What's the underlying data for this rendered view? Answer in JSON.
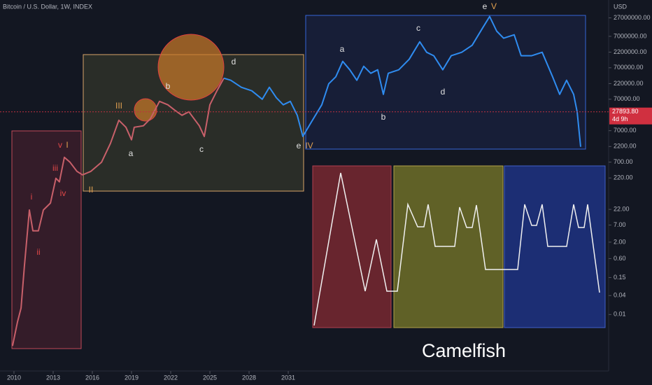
{
  "chart_data": {
    "type": "line",
    "title": "Bitcoin / U.S. Dollar, 1W, INDEX",
    "y_axis_label": "USD",
    "log_scale": true,
    "xlim": [
      2008.93,
      2055.53
    ],
    "xticks": [
      2010,
      2013,
      2016,
      2019,
      2022,
      2025,
      2028,
      2031
    ],
    "ylim": [
      0.00016,
      100000000
    ],
    "yticks": [
      {
        "value": 27000000,
        "label": "27000000.00"
      },
      {
        "value": 7000000,
        "label": "7000000.00"
      },
      {
        "value": 2200000,
        "label": "2200000.00"
      },
      {
        "value": 700000,
        "label": "700000.00"
      },
      {
        "value": 220000,
        "label": "220000.00"
      },
      {
        "value": 70000,
        "label": "70000.00"
      },
      {
        "value": 7000,
        "label": "7000.00"
      },
      {
        "value": 2200,
        "label": "2200.00"
      },
      {
        "value": 700,
        "label": "700.00"
      },
      {
        "value": 220,
        "label": "220.00"
      },
      {
        "value": 22,
        "label": "22.00"
      },
      {
        "value": 7,
        "label": "7.00"
      },
      {
        "value": 2,
        "label": "2.00"
      },
      {
        "value": 0.6,
        "label": "0.60"
      },
      {
        "value": 0.15,
        "label": "0.15"
      },
      {
        "value": 0.04,
        "label": "0.04"
      },
      {
        "value": 0.01,
        "label": "0.01"
      }
    ],
    "last_price": {
      "value": 27893.8,
      "label": "27893.80"
    },
    "countdown": "4d 9h",
    "series": [
      {
        "color": "#c8606a",
        "x": [
          2009.89,
          2010.27,
          2010.54,
          2010.8,
          2011.18,
          2011.45,
          2011.87,
          2012.25,
          2012.79,
          2013.21,
          2013.48,
          2013.86,
          2014.29,
          2014.82,
          2015.25,
          2015.89,
          2016.7,
          2017.39,
          2018.03,
          2018.57,
          2019.0,
          2019.21,
          2019.91,
          2020.44,
          2021.14,
          2021.78,
          2022.32,
          2022.86,
          2023.39,
          2024.19,
          2024.57,
          2025.0,
          2025.54,
          2026.07
        ],
        "values": [
          0.001,
          0.0058,
          0.016,
          0.35,
          21,
          4.6,
          4.6,
          21,
          35,
          214,
          165,
          1000,
          695,
          357,
          276,
          357,
          695,
          2770,
          15000,
          9000,
          3600,
          9000,
          10000,
          16700,
          60000,
          46500,
          31000,
          21600,
          27900,
          10000,
          4600,
          46500,
          130000,
          327000
        ]
      },
      {
        "color": "#2f8cf0",
        "x": [
          2026.07,
          2026.6,
          2027.41,
          2028.21,
          2029.01,
          2029.55,
          2030.09,
          2030.62,
          2031.16,
          2031.69,
          2032.12,
          2032.76,
          2033.57,
          2034.1,
          2034.64,
          2035.17,
          2035.71,
          2036.25,
          2036.78,
          2037.32,
          2037.85,
          2038.28,
          2038.66,
          2039.46,
          2040.26,
          2041.07,
          2041.6,
          2042.14,
          2042.83,
          2043.48,
          2044.28,
          2045.08,
          2045.89,
          2046.42,
          2046.96,
          2047.49,
          2048.3,
          2048.83,
          2049.64,
          2050.44,
          2051.24,
          2051.78,
          2052.31,
          2052.85,
          2053.12,
          2053.39
        ],
        "values": [
          327000,
          280000,
          168000,
          130000,
          70000,
          168000,
          78000,
          46500,
          60000,
          21600,
          4600,
          13000,
          46500,
          217000,
          362000,
          1120000,
          605000,
          280000,
          782000,
          468000,
          605000,
          100000,
          468000,
          605000,
          1300000,
          4700000,
          2180000,
          1690000,
          605000,
          1690000,
          2180000,
          3640000,
          13100000,
          29900000,
          10200000,
          6080000,
          7850000,
          1690000,
          1690000,
          2180000,
          362000,
          100000,
          280000,
          100000,
          27900,
          2150
        ]
      }
    ],
    "annotations": [
      "III",
      "a",
      "b",
      "c",
      "d",
      "e",
      "IV",
      "a",
      "b",
      "c",
      "d",
      "e",
      "V",
      "v",
      "I",
      "II",
      "i",
      "ii",
      "iii",
      "iv"
    ],
    "watermark": "Camelfish"
  }
}
